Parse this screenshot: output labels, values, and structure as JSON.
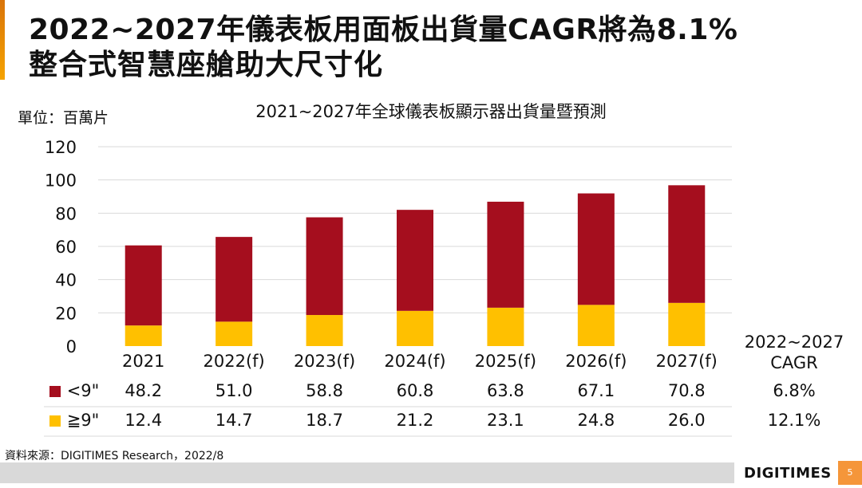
{
  "header": {
    "title_line1": "2022~2027年儀表板用面板出貨量CAGR將為8.1%",
    "title_line2": "整合式智慧座艙助大尺寸化"
  },
  "chart_data": {
    "type": "bar",
    "stacked": true,
    "title": "2021~2027年全球儀表板顯示器出貨量暨預測",
    "unit_label": "單位：百萬片",
    "categories": [
      "2021",
      "2022(f)",
      "2023(f)",
      "2024(f)",
      "2025(f)",
      "2026(f)",
      "2027(f)"
    ],
    "series": [
      {
        "name": "≧9\"",
        "color": "#ffc000",
        "values": [
          12.4,
          14.7,
          18.7,
          21.2,
          23.1,
          24.8,
          26.0
        ],
        "cagr": "12.1%"
      },
      {
        "name": "<9\"",
        "color": "#a50e1e",
        "values": [
          48.2,
          51.0,
          58.8,
          60.8,
          63.8,
          67.1,
          70.8
        ],
        "cagr": "6.8%"
      }
    ],
    "ylim": [
      0,
      120
    ],
    "yticks": [
      0,
      20,
      40,
      60,
      80,
      100,
      120
    ],
    "grid": true,
    "cagr_header": [
      "2022~2027",
      "CAGR"
    ]
  },
  "footer": {
    "source": "資料來源：DIGITIMES Research，2022/8",
    "logo": "DIGITIMES",
    "page": "5"
  }
}
